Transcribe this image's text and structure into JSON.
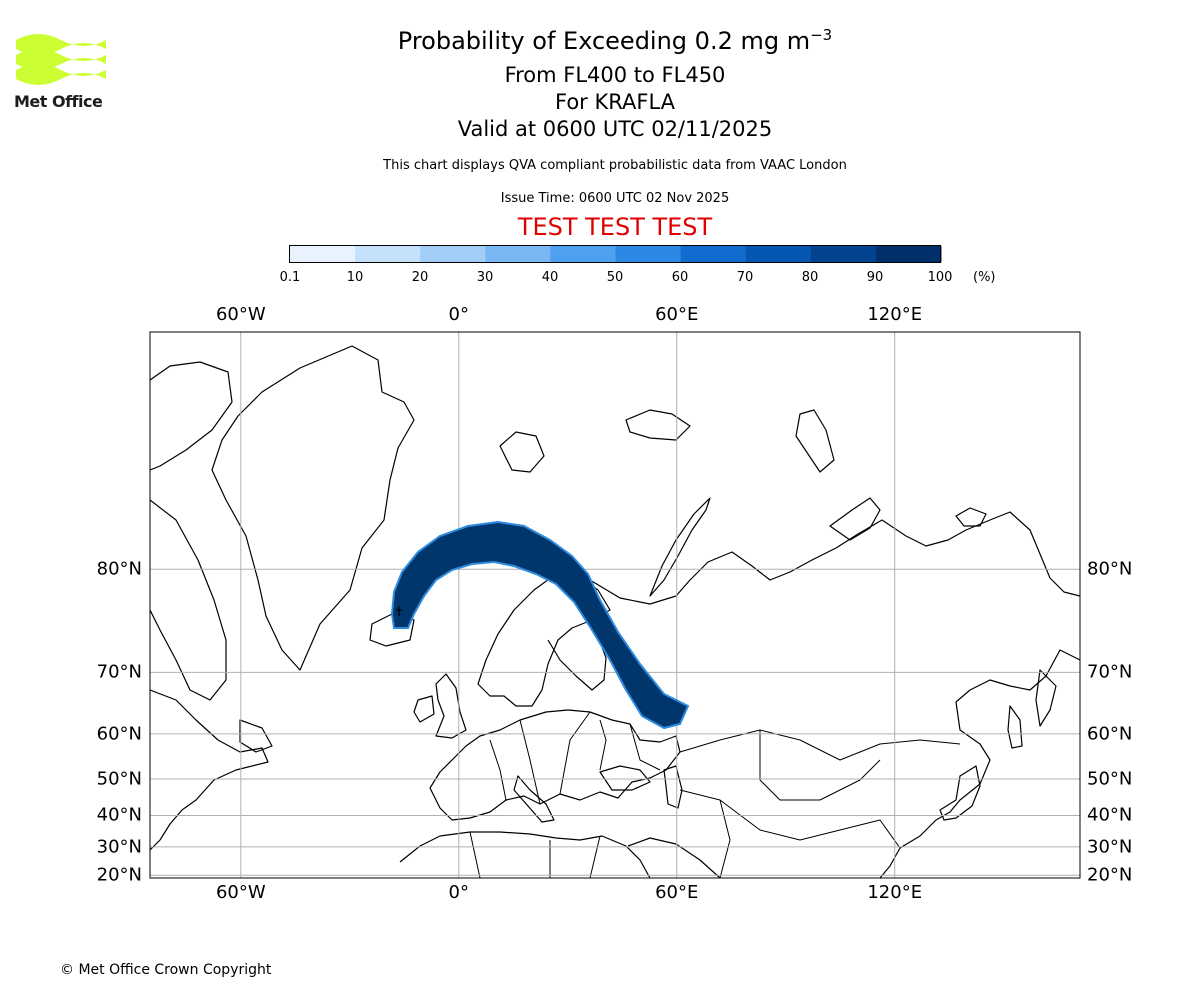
{
  "header": {
    "title_prefix": "Probability of Exceeding 0.2 mg m",
    "title_exponent": "−3",
    "flight_levels": "From FL400 to FL450",
    "volcano": "For KRAFLA",
    "validity": "Valid at 0600 UTC 02/11/2025",
    "description": "This chart displays QVA compliant probabilistic data from VAAC London",
    "issue_time": "Issue Time: 0600 UTC 02 Nov 2025",
    "test_banner": "TEST TEST TEST",
    "test_banner_color": "#e00000"
  },
  "logo": {
    "text": "Met Office",
    "color": "#ccff33",
    "icon": "met-office-wave-logo"
  },
  "colorbar": {
    "tick_labels": [
      "0.1",
      "10",
      "20",
      "30",
      "40",
      "50",
      "60",
      "70",
      "80",
      "90",
      "100"
    ],
    "units": "(%)",
    "colors": [
      "#e8f3ff",
      "#c6e1fb",
      "#a2cdf7",
      "#7ab8f4",
      "#4fa1ef",
      "#2b88e5",
      "#106dcf",
      "#0556b0",
      "#02438f",
      "#012f6b"
    ]
  },
  "map": {
    "projection": "mercator",
    "lon_range": [
      -85,
      171
    ],
    "lat_range": [
      19,
      88
    ],
    "lon_ticks": [
      "60°W",
      "0°",
      "60°E",
      "120°E"
    ],
    "lat_ticks": [
      "80°N",
      "70°N",
      "60°N",
      "50°N",
      "40°N",
      "30°N",
      "20°N"
    ],
    "plume_color": "#00366b",
    "plume_edge_color": "#2d8be0",
    "plume_probability_percent": "90-100",
    "volcano_location": "Krafla, Iceland"
  },
  "footer": {
    "copyright": "© Met Office Crown Copyright"
  }
}
